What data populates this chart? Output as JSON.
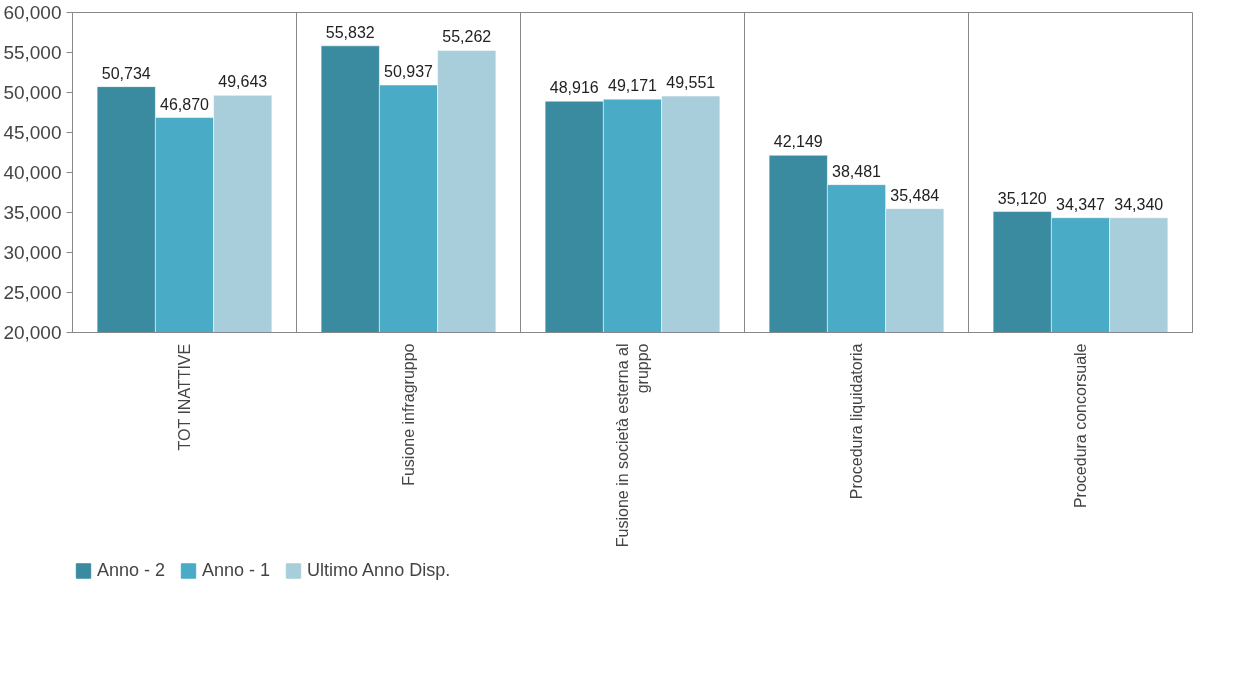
{
  "chart_data": {
    "type": "bar",
    "categories": [
      "TOT INATTIVE",
      "Fusione infragruppo",
      "Fusione in società esterna al gruppo",
      "Procedura liquidatoria",
      "Procedura concorsuale"
    ],
    "series": [
      {
        "name": "Anno - 2",
        "color": "#3a8aa0",
        "values": [
          50734,
          55832,
          48916,
          42149,
          35120
        ],
        "value_labels": [
          "50,734",
          "55,832",
          "48,916",
          "42,149",
          "35,120"
        ]
      },
      {
        "name": "Anno - 1",
        "color": "#4aabc6",
        "values": [
          46870,
          50937,
          49171,
          38481,
          34347
        ],
        "value_labels": [
          "46,870",
          "50,937",
          "49,171",
          "38,481",
          "34,347"
        ]
      },
      {
        "name": "Ultimo Anno Disp.",
        "color": "#a8cedb",
        "values": [
          49643,
          55262,
          49551,
          35484,
          34340
        ],
        "value_labels": [
          "49,643",
          "55,262",
          "49,551",
          "35,484",
          "34,340"
        ]
      }
    ],
    "ylim": [
      20000,
      60000
    ],
    "yticks": [
      {
        "value": 20000,
        "label": "20,000"
      },
      {
        "value": 25000,
        "label": "25,000"
      },
      {
        "value": 30000,
        "label": "30,000"
      },
      {
        "value": 35000,
        "label": "35,000"
      },
      {
        "value": 40000,
        "label": "40,000"
      },
      {
        "value": 45000,
        "label": "45,000"
      },
      {
        "value": 50000,
        "label": "50,000"
      },
      {
        "value": 55000,
        "label": "55,000"
      },
      {
        "value": 60000,
        "label": "60,000"
      }
    ],
    "grid": "x",
    "legend": "bottom left"
  }
}
